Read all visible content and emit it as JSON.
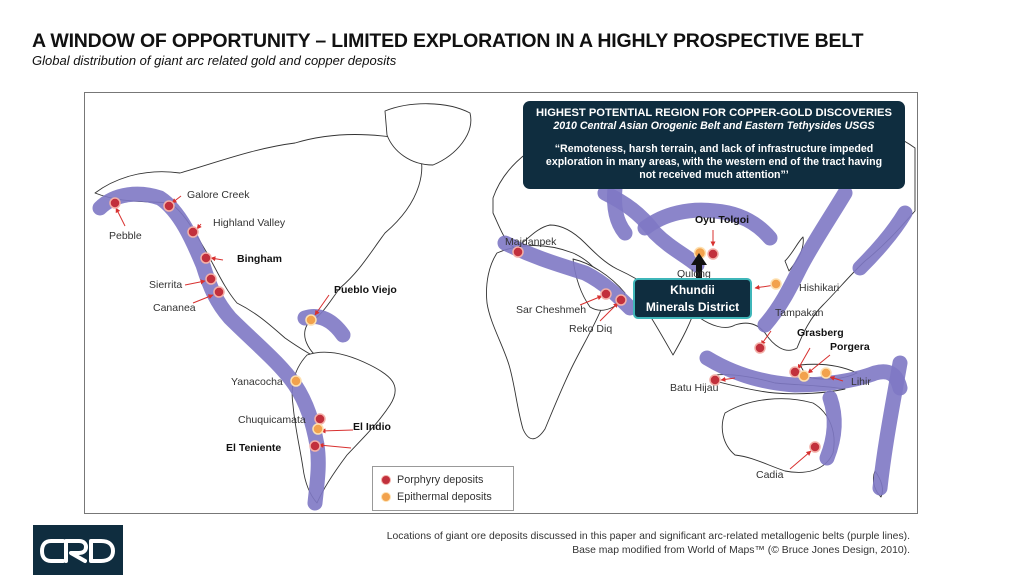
{
  "title": "A WINDOW OF OPPORTUNITY – LIMITED EXPLORATION IN A HIGHLY PROSPECTIVE BELT",
  "subtitle": "Global distribution of giant arc related gold and copper deposits",
  "callout": {
    "heading": "HIGHEST POTENTIAL REGION FOR COPPER-GOLD DISCOVERIES",
    "subheading": "2010 Central Asian Orogenic Belt and Eastern Tethysides USGS",
    "quote_line1": "“Remoteness, harsh terrain, and lack of infrastructure impeded",
    "quote_line2": "exploration in many areas, with the western end of the tract having",
    "quote_line3": "not received much attention”’"
  },
  "khundii": {
    "line1": "Khundii",
    "line2": "Minerals District"
  },
  "legend": {
    "porphyry": "Porphyry deposits",
    "epithermal": "Epithermal deposits"
  },
  "colors": {
    "belt": "#7e78c4",
    "porphyry": "#c2303c",
    "epithermal": "#f2a24d",
    "navy": "#0f2d3f",
    "teal": "#3fb6b9"
  },
  "deposits": {
    "pebble": "Pebble",
    "galore_creek": "Galore Creek",
    "highland_valley": "Highland Valley",
    "bingham": "Bingham",
    "sierrita": "Sierrita",
    "cananea": "Cananea",
    "pueblo_viejo": "Pueblo Viejo",
    "yanacocha": "Yanacocha",
    "chuquicamata": "Chuquicamata",
    "el_indio": "El Indio",
    "el_teniente": "El Teniente",
    "majdanpek": "Majdanpek",
    "sar_cheshmeh": "Sar Cheshmeh",
    "reko_diq": "Reko Diq",
    "oyu_tolgoi": "Oyu Tolgoi",
    "qulong": "Qulong",
    "hishikari": "Hishikari",
    "tampakan": "Tampakan",
    "grasberg": "Grasberg",
    "porgera": "Porgera",
    "lihir": "Lihir",
    "batu_hijau": "Batu Hijau",
    "cadia": "Cadia"
  },
  "footnote": {
    "line1": "Locations of giant ore deposits discussed in this paper and significant arc-related metallogenic belts (purple lines).",
    "line2": "Base map modified from World of Maps™ (© Bruce Jones Design, 2010)."
  },
  "logo": {
    "icon": "crd-logo"
  }
}
